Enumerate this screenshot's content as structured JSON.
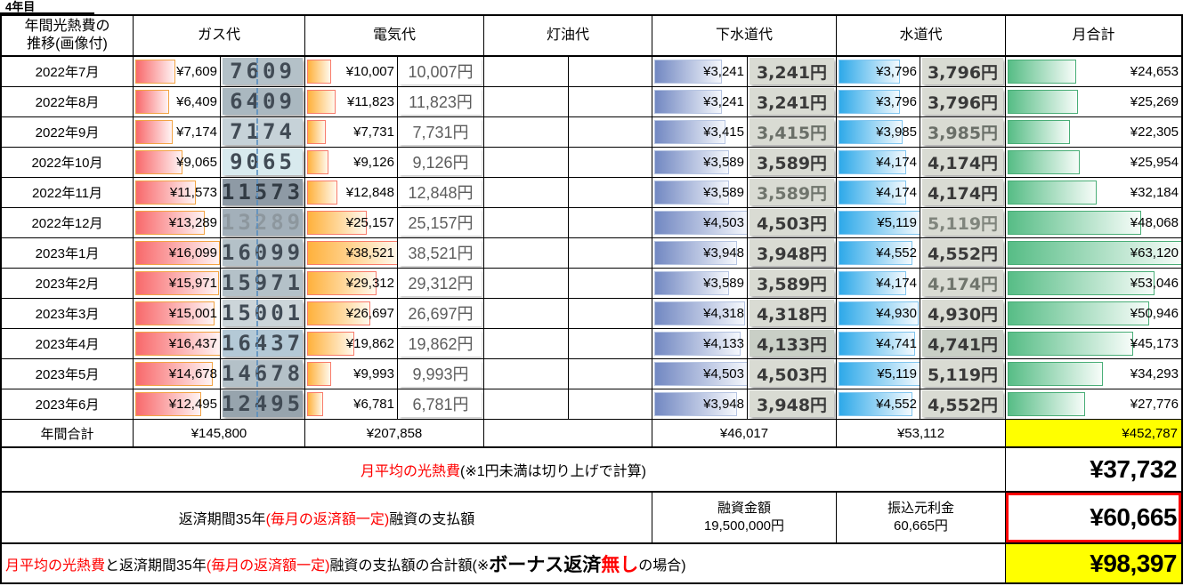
{
  "title": "4年目",
  "header": {
    "col_month": "年間光熱費の\n推移(画像付)",
    "gas": "ガス代",
    "electricity": "電気代",
    "kerosene": "灯油代",
    "sewer": "下水道代",
    "water": "水道代",
    "total": "月合計"
  },
  "rows": [
    {
      "month": "2022年7月",
      "gas": {
        "v": 7609,
        "label": "¥7,609",
        "photo": "7609"
      },
      "electricity": {
        "v": 10007,
        "label": "¥10,007",
        "photo": "10,007円"
      },
      "sewer": {
        "v": 3241,
        "label": "¥3,241",
        "photo": "3,241円"
      },
      "water": {
        "v": 3796,
        "label": "¥3,796",
        "photo": "3,796円"
      },
      "total": {
        "v": 24653,
        "label": "¥24,653"
      }
    },
    {
      "month": "2022年8月",
      "gas": {
        "v": 6409,
        "label": "¥6,409",
        "photo": "6409"
      },
      "electricity": {
        "v": 11823,
        "label": "¥11,823",
        "photo": "11,823円"
      },
      "sewer": {
        "v": 3241,
        "label": "¥3,241",
        "photo": "3,241円"
      },
      "water": {
        "v": 3796,
        "label": "¥3,796",
        "photo": "3,796円"
      },
      "total": {
        "v": 25269,
        "label": "¥25,269"
      }
    },
    {
      "month": "2022年9月",
      "gas": {
        "v": 7174,
        "label": "¥7,174",
        "photo": "7174"
      },
      "electricity": {
        "v": 7731,
        "label": "¥7,731",
        "photo": "7,731円"
      },
      "sewer": {
        "v": 3415,
        "label": "¥3,415",
        "photo": "3,415円"
      },
      "water": {
        "v": 3985,
        "label": "¥3,985",
        "photo": "3,985円"
      },
      "total": {
        "v": 22305,
        "label": "¥22,305"
      }
    },
    {
      "month": "2022年10月",
      "gas": {
        "v": 9065,
        "label": "¥9,065",
        "photo": "9065"
      },
      "electricity": {
        "v": 9126,
        "label": "¥9,126",
        "photo": "9,126円"
      },
      "sewer": {
        "v": 3589,
        "label": "¥3,589",
        "photo": "3,589円"
      },
      "water": {
        "v": 4174,
        "label": "¥4,174",
        "photo": "4,174円"
      },
      "total": {
        "v": 25954,
        "label": "¥25,954"
      }
    },
    {
      "month": "2022年11月",
      "gas": {
        "v": 11573,
        "label": "¥11,573",
        "photo": "11573"
      },
      "electricity": {
        "v": 12848,
        "label": "¥12,848",
        "photo": "12,848円"
      },
      "sewer": {
        "v": 3589,
        "label": "¥3,589",
        "photo": "3,589円"
      },
      "water": {
        "v": 4174,
        "label": "¥4,174",
        "photo": "4,174円"
      },
      "total": {
        "v": 32184,
        "label": "¥32,184"
      }
    },
    {
      "month": "2022年12月",
      "gas": {
        "v": 13289,
        "label": "¥13,289",
        "photo": "13289"
      },
      "electricity": {
        "v": 25157,
        "label": "¥25,157",
        "photo": "25,157円"
      },
      "sewer": {
        "v": 4503,
        "label": "¥4,503",
        "photo": "4,503円"
      },
      "water": {
        "v": 5119,
        "label": "¥5,119",
        "photo": "5,119円"
      },
      "total": {
        "v": 48068,
        "label": "¥48,068"
      }
    },
    {
      "month": "2023年1月",
      "gas": {
        "v": 16099,
        "label": "¥16,099",
        "photo": "16099"
      },
      "electricity": {
        "v": 38521,
        "label": "¥38,521",
        "photo": "38,521円"
      },
      "sewer": {
        "v": 3948,
        "label": "¥3,948",
        "photo": "3,948円"
      },
      "water": {
        "v": 4552,
        "label": "¥4,552",
        "photo": "4,552円"
      },
      "total": {
        "v": 63120,
        "label": "¥63,120"
      }
    },
    {
      "month": "2023年2月",
      "gas": {
        "v": 15971,
        "label": "¥15,971",
        "photo": "15971"
      },
      "electricity": {
        "v": 29312,
        "label": "¥29,312",
        "photo": "29,312円"
      },
      "sewer": {
        "v": 3589,
        "label": "¥3,589",
        "photo": "3,589円"
      },
      "water": {
        "v": 4174,
        "label": "¥4,174",
        "photo": "4,174円"
      },
      "total": {
        "v": 53046,
        "label": "¥53,046"
      }
    },
    {
      "month": "2023年3月",
      "gas": {
        "v": 15001,
        "label": "¥15,001",
        "photo": "15001"
      },
      "electricity": {
        "v": 26697,
        "label": "¥26,697",
        "photo": "26,697円"
      },
      "sewer": {
        "v": 4318,
        "label": "¥4,318",
        "photo": "4,318円"
      },
      "water": {
        "v": 4930,
        "label": "¥4,930",
        "photo": "4,930円"
      },
      "total": {
        "v": 50946,
        "label": "¥50,946"
      }
    },
    {
      "month": "2023年4月",
      "gas": {
        "v": 16437,
        "label": "¥16,437",
        "photo": "16437"
      },
      "electricity": {
        "v": 19862,
        "label": "¥19,862",
        "photo": "19,862円"
      },
      "sewer": {
        "v": 4133,
        "label": "¥4,133",
        "photo": "4,133円"
      },
      "water": {
        "v": 4741,
        "label": "¥4,741",
        "photo": "4,741円"
      },
      "total": {
        "v": 45173,
        "label": "¥45,173"
      }
    },
    {
      "month": "2023年5月",
      "gas": {
        "v": 14678,
        "label": "¥14,678",
        "photo": "14678"
      },
      "electricity": {
        "v": 9993,
        "label": "¥9,993",
        "photo": "9,993円"
      },
      "sewer": {
        "v": 4503,
        "label": "¥4,503",
        "photo": "4,503円"
      },
      "water": {
        "v": 5119,
        "label": "¥5,119",
        "photo": "5,119円"
      },
      "total": {
        "v": 34293,
        "label": "¥34,293"
      }
    },
    {
      "month": "2023年6月",
      "gas": {
        "v": 12495,
        "label": "¥12,495",
        "photo": "12495"
      },
      "electricity": {
        "v": 6781,
        "label": "¥6,781",
        "photo": "6,781円"
      },
      "sewer": {
        "v": 3948,
        "label": "¥3,948",
        "photo": "3,948円"
      },
      "water": {
        "v": 4552,
        "label": "¥4,552",
        "photo": "4,552円"
      },
      "total": {
        "v": 27776,
        "label": "¥27,776"
      }
    }
  ],
  "totals": {
    "label": "年間合計",
    "gas": "¥145,800",
    "electricity": "¥207,858",
    "kerosene": "",
    "sewer": "¥46,017",
    "water": "¥53,112",
    "grand": "¥452,787"
  },
  "summary": {
    "avg": {
      "seg_red": "月平均の光熱費",
      "seg_black": "(※1円未満は切り上げで計算)",
      "value": "¥37,732"
    },
    "loan": {
      "seg1": "返済期間35年",
      "seg2": "(毎月の返済額一定)",
      "seg3": "融資の支払額",
      "amount_title": "融資金額",
      "amount": "19,500,000円",
      "principal_title": "振込元利金",
      "principal": "60,665円",
      "value": "¥60,665"
    },
    "combined": {
      "seg1": "月平均の光熱費",
      "seg2": "と返済期間35年",
      "seg3": "(毎月の返済額一定)",
      "seg4": "融資の支払額の合計額(※",
      "seg5": "ボーナス返済",
      "seg6": "無し",
      "seg7": "の場合)",
      "value": "¥98,397"
    }
  },
  "colors": {
    "gas_bar": "#f8696b",
    "gas_border": "#f2a444",
    "elec_bar": "#ffb13c",
    "elec_border": "#f87c6c",
    "sewer_bar": "#7288c2",
    "sewer_border": "#b7c5e2",
    "water_bar": "#2ea9e9",
    "water_border": "#82c6ef",
    "total_bar": "#57bd86",
    "total_border": "#49ae77",
    "highlight": "#ffff00",
    "alert_border": "#ff0000",
    "red_text": "#ff0000"
  }
}
